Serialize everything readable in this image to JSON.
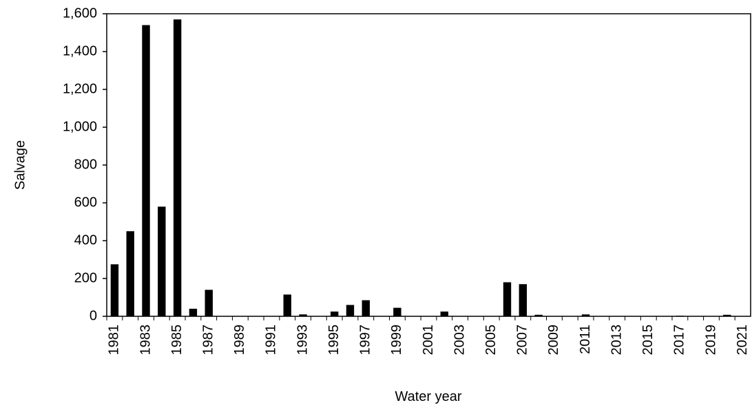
{
  "chart_data": {
    "type": "bar",
    "x_label": "Water year",
    "y_label": "Salvage",
    "categories": [
      "1981",
      null,
      "1983",
      null,
      "1985",
      null,
      "1987",
      null,
      "1989",
      null,
      "1991",
      null,
      "1993",
      null,
      "1995",
      null,
      "1997",
      null,
      "1999",
      null,
      "2001",
      null,
      "2003",
      null,
      "2005",
      null,
      "2007",
      null,
      "2009",
      null,
      "2011",
      null,
      "2013",
      null,
      "2015",
      null,
      "2017",
      null,
      "2019",
      null,
      "2021"
    ],
    "values": [
      275,
      450,
      1540,
      580,
      1570,
      40,
      140,
      0,
      0,
      0,
      0,
      115,
      10,
      0,
      25,
      60,
      85,
      0,
      45,
      0,
      0,
      25,
      0,
      0,
      0,
      180,
      170,
      8,
      0,
      0,
      10,
      0,
      0,
      0,
      0,
      0,
      3,
      0,
      0,
      8,
      0
    ],
    "color": "#000000",
    "ylim": [
      0,
      1600
    ],
    "yticks": [
      0,
      200,
      400,
      600,
      800,
      {
        "value": 1000,
        "label": "1,000"
      },
      {
        "value": 1200,
        "label": "1,200"
      },
      {
        "value": 1400,
        "label": "1,400"
      },
      {
        "value": 1600,
        "label": "1,600"
      }
    ],
    "grid": false
  }
}
